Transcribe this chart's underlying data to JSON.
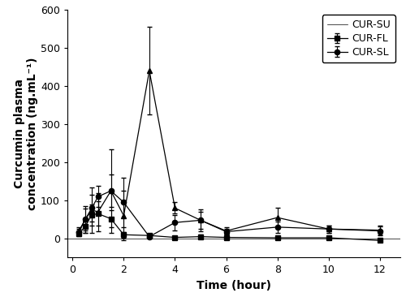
{
  "time": [
    0.25,
    0.5,
    0.75,
    1.0,
    1.5,
    2.0,
    3.0,
    4.0,
    5.0,
    6.0,
    8.0,
    10.0,
    12.0
  ],
  "CUR_SL_mean": [
    20,
    50,
    75,
    70,
    125,
    60,
    440,
    80,
    48,
    20,
    55,
    25,
    22
  ],
  "CUR_SL_err": [
    10,
    35,
    60,
    50,
    110,
    65,
    115,
    15,
    22,
    10,
    25,
    10,
    12
  ],
  "CUR_FL_mean": [
    18,
    50,
    80,
    110,
    125,
    95,
    5,
    42,
    48,
    18,
    30,
    25,
    20
  ],
  "CUR_FL_err": [
    8,
    28,
    35,
    28,
    42,
    65,
    4,
    20,
    28,
    8,
    15,
    10,
    12
  ],
  "CUR_SU_mean": [
    12,
    32,
    62,
    65,
    52,
    10,
    8,
    3,
    5,
    3,
    2,
    2,
    -5
  ],
  "CUR_SU_err": [
    6,
    18,
    28,
    32,
    22,
    8,
    4,
    3,
    6,
    3,
    2,
    2,
    4
  ],
  "xlabel": "Time (hour)",
  "ylabel": "Curcumin plasma\nconcentration (ng.mL⁻¹)",
  "ylim": [
    -50,
    600
  ],
  "xlim": [
    -0.2,
    12.8
  ],
  "xticks": [
    0,
    2,
    4,
    6,
    8,
    10,
    12
  ],
  "yticks": [
    0,
    100,
    200,
    300,
    400,
    500,
    600
  ],
  "legend_labels": [
    "CUR-SU",
    "CUR-FL",
    "CUR-SL"
  ],
  "line_color": "#000000",
  "background_color": "#ffffff",
  "axis_fontsize": 10,
  "tick_fontsize": 9,
  "legend_fontsize": 9
}
